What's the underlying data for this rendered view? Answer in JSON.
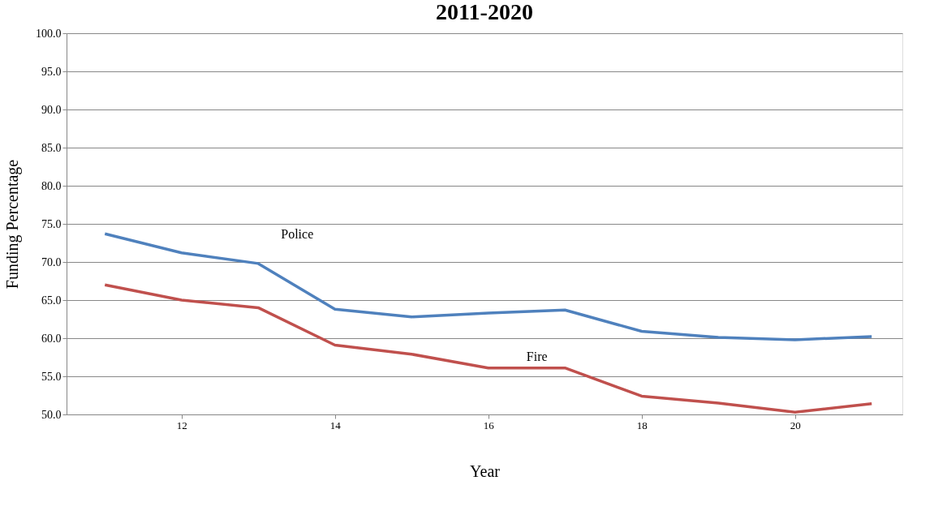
{
  "chart_data": {
    "type": "line",
    "title": "2011-2020",
    "xlabel": "Year",
    "ylabel": "Funding Percentage",
    "x": [
      11,
      12,
      13,
      14,
      15,
      16,
      17,
      18,
      19,
      20,
      21
    ],
    "series": [
      {
        "name": "Police",
        "color": "#4f81bd",
        "values": [
          73.7,
          71.2,
          69.8,
          63.8,
          62.8,
          63.3,
          63.7,
          60.9,
          60.1,
          59.8,
          60.2
        ]
      },
      {
        "name": "Fire",
        "color": "#c0504d",
        "values": [
          67.0,
          65.0,
          64.0,
          59.1,
          57.9,
          56.1,
          56.1,
          52.4,
          51.5,
          50.3,
          51.4
        ]
      }
    ],
    "xlim": [
      10.5,
      21.4
    ],
    "xticks": [
      12,
      14,
      16,
      18,
      20
    ],
    "ylim": [
      50,
      100
    ],
    "yticks": [
      {
        "value": 50,
        "label": "50.0"
      },
      {
        "value": 55,
        "label": "55.0"
      },
      {
        "value": 60,
        "label": "60.0"
      },
      {
        "value": 65,
        "label": "65.0"
      },
      {
        "value": 70,
        "label": "70.0"
      },
      {
        "value": 75,
        "label": "75.0"
      },
      {
        "value": 80,
        "label": "80.0"
      },
      {
        "value": 85,
        "label": "85.0"
      },
      {
        "value": 90,
        "label": "90.0"
      },
      {
        "value": 95,
        "label": "95.0"
      },
      {
        "value": 100,
        "label": "100.0"
      }
    ],
    "grid": "y",
    "marker": "none",
    "line_style": "solid"
  }
}
